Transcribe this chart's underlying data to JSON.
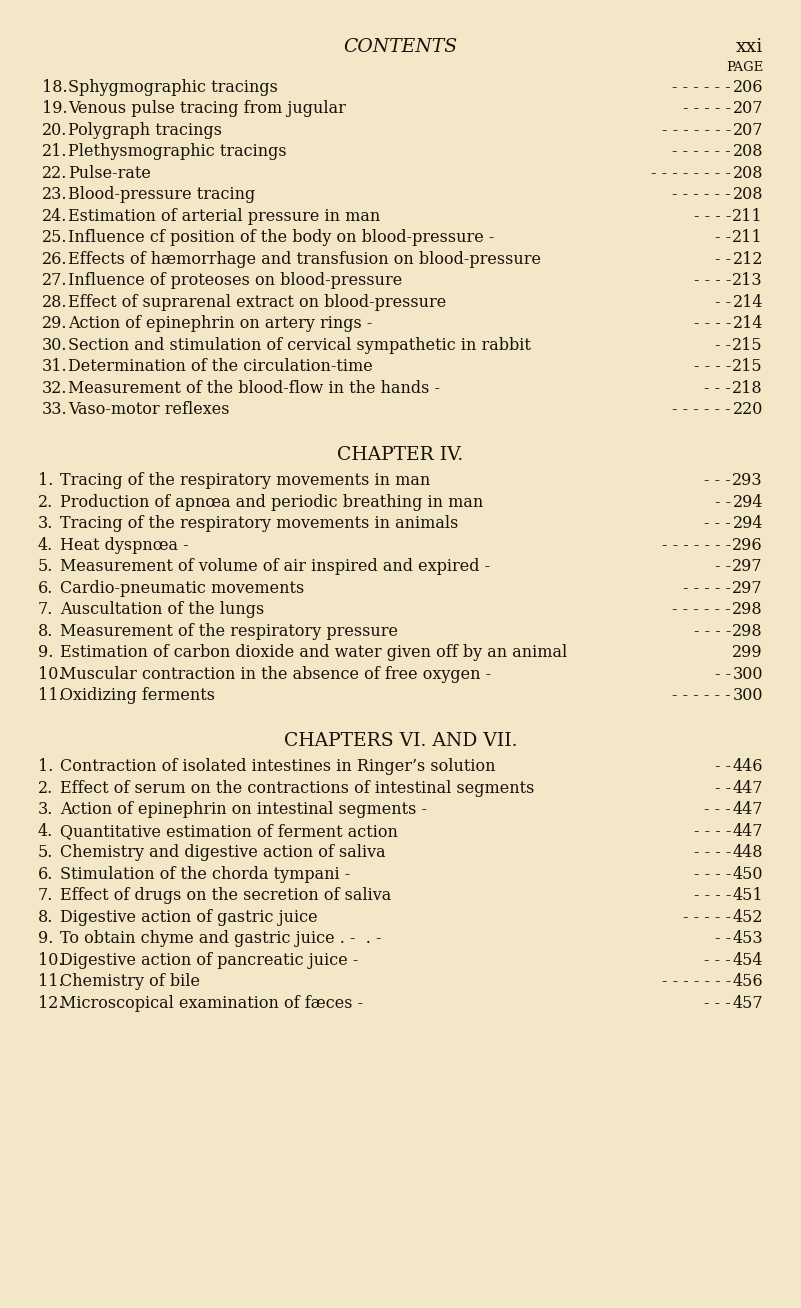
{
  "bg_color": "#f2e8c8",
  "text_color": "#1a1008",
  "title": "CONTENTS",
  "page_label": "xxi",
  "page_label2": "PAGE",
  "body_font_size": 11.5,
  "header_font_size": 13.5,
  "section_pacb": {
    "entries": [
      {
        "num": "18",
        "text": "Sphygmographic tracings",
        "dots": "- - - - -",
        "page": "206"
      },
      {
        "num": "19",
        "text": "Venous pulse tracing from jugular",
        "dots": "- - - -",
        "page": "207"
      },
      {
        "num": "20",
        "text": "Polygraph tracings",
        "dots": "- - - - - -",
        "page": "207"
      },
      {
        "num": "21",
        "text": "Plethysmographic tracings",
        "dots": "- - - - -",
        "page": "208"
      },
      {
        "num": "22",
        "text": "Pulse-rate",
        "dots": "- - - - - - -",
        "page": "208"
      },
      {
        "num": "23",
        "text": "Blood-pressure tracing",
        "dots": "- - - - -",
        "page": "208"
      },
      {
        "num": "24",
        "text": "Estimation of arterial pressure in man",
        "dots": "- - -",
        "page": "211"
      },
      {
        "num": "25",
        "text": "Influence cf position of the body on blood-pressure -",
        "dots": "-",
        "page": "211"
      },
      {
        "num": "26",
        "text": "Effects of hæmorrhage and transfusion on blood-pressure",
        "dots": "-",
        "page": "212"
      },
      {
        "num": "27",
        "text": "Influence of proteoses on blood-pressure",
        "dots": "- - -",
        "page": "213"
      },
      {
        "num": "28",
        "text": "Effect of suprarenal extract on blood-pressure",
        "dots": "-",
        "page": "214"
      },
      {
        "num": "29",
        "text": "Action of epinephrin on artery rings -",
        "dots": "- - -",
        "page": "214"
      },
      {
        "num": "30",
        "text": "Section and stimulation of cervical sympathetic in rabbit",
        "dots": "-",
        "page": "215"
      },
      {
        "num": "31",
        "text": "Determination of the circulation-time",
        "dots": "- - -",
        "page": "215"
      },
      {
        "num": "32",
        "text": "Measurement of the blood-flow in the hands -",
        "dots": "- -",
        "page": "218"
      },
      {
        "num": "33",
        "text": "Vaso-motor reflexes",
        "dots": "- - - - -",
        "page": "220"
      }
    ]
  },
  "section_ch4": {
    "header": "CHAPTER IV.",
    "entries": [
      {
        "num": "1",
        "text": "Tracing of the respiratory movements in man",
        "dots": "- -",
        "page": "293"
      },
      {
        "num": "2",
        "text": "Production of apnœa and periodic breathing in man",
        "dots": "-",
        "page": "294"
      },
      {
        "num": "3",
        "text": "Tracing of the respiratory movements in animals",
        "dots": "- -",
        "page": "294"
      },
      {
        "num": "4",
        "text": "Heat dyspnœa -",
        "dots": "- - - - - -",
        "page": "296"
      },
      {
        "num": "5",
        "text": "Measurement of volume of air inspired and expired -",
        "dots": "-",
        "page": "297"
      },
      {
        "num": "6",
        "text": "Cardio-pneumatic movements",
        "dots": "- - - -",
        "page": "297"
      },
      {
        "num": "7",
        "text": "Auscultation of the lungs",
        "dots": "- - - - -",
        "page": "298"
      },
      {
        "num": "8",
        "text": "Measurement of the respiratory pressure",
        "dots": "- - -",
        "page": "298"
      },
      {
        "num": "9",
        "text": "Estimation of carbon dioxide and water given off by an animal",
        "dots": "",
        "page": "299"
      },
      {
        "num": "10",
        "text": "Muscular contraction in the absence of free oxygen -",
        "dots": "-",
        "page": "300"
      },
      {
        "num": "11",
        "text": "Oxidizing ferments",
        "dots": "- - - - -",
        "page": "300"
      }
    ]
  },
  "section_ch67": {
    "header": "CHAPTERS VI. AND VII.",
    "entries": [
      {
        "num": "1",
        "text": "Contraction of isolated intestines in Ringer’s solution",
        "dots": "-",
        "page": "446"
      },
      {
        "num": "2",
        "text": "Effect of serum on the contractions of intestinal segments",
        "dots": "-",
        "page": "447"
      },
      {
        "num": "3",
        "text": "Action of epinephrin on intestinal segments -",
        "dots": "- -",
        "page": "447"
      },
      {
        "num": "4",
        "text": "Quantitative estimation of ferment action",
        "dots": "- - -",
        "page": "447"
      },
      {
        "num": "5",
        "text": "Chemistry and digestive action of saliva",
        "dots": "- - -",
        "page": "448"
      },
      {
        "num": "6",
        "text": "Stimulation of the chorda tympani -",
        "dots": "- - -",
        "page": "450"
      },
      {
        "num": "7",
        "text": "Effect of drugs on the secretion of saliva",
        "dots": "- - -",
        "page": "451"
      },
      {
        "num": "8",
        "text": "Digestive action of gastric juice",
        "dots": "- - - -",
        "page": "452"
      },
      {
        "num": "9",
        "text": "To obtain chyme and gastric juice . -  . -",
        "dots": "-",
        "page": "453"
      },
      {
        "num": "10",
        "text": "Digestive action of pancreatic juice -",
        "dots": "- -",
        "page": "454"
      },
      {
        "num": "11",
        "text": "Chemistry of bile",
        "dots": "- - - - - -",
        "page": "456"
      },
      {
        "num": "12",
        "text": "Microscopical examination of fæces -",
        "dots": "- -",
        "page": "457"
      }
    ]
  }
}
